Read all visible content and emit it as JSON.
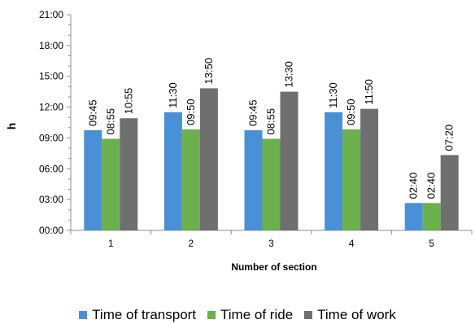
{
  "chart_data": {
    "type": "bar",
    "xlabel": "Number of section",
    "ylabel": "h",
    "categories": [
      "1",
      "2",
      "3",
      "4",
      "5"
    ],
    "y_ticks": [
      "00:00",
      "03:00",
      "06:00",
      "09:00",
      "12:00",
      "15:00",
      "18:00",
      "21:00"
    ],
    "ylim": [
      0,
      21
    ],
    "y_unit": "hours",
    "grid": false,
    "legend_position": "bottom",
    "series": [
      {
        "name": "Time of transport",
        "color": "#4a90d6",
        "values": [
          9.75,
          11.5,
          9.75,
          11.5,
          2.6667
        ],
        "labels": [
          "09:45",
          "11:30",
          "09:45",
          "11:30",
          "02:40"
        ]
      },
      {
        "name": "Time of ride",
        "color": "#6ab04c",
        "values": [
          8.9167,
          9.8333,
          8.9167,
          9.8333,
          2.6667
        ],
        "labels": [
          "08:55",
          "09:50",
          "08:55",
          "09:50",
          "02:40"
        ]
      },
      {
        "name": "Time of work",
        "color": "#6f6f6f",
        "values": [
          10.9167,
          13.8333,
          13.5,
          11.8333,
          7.3333
        ],
        "labels": [
          "10:55",
          "13:50",
          "13:30",
          "11:50",
          "07:20"
        ]
      }
    ]
  }
}
